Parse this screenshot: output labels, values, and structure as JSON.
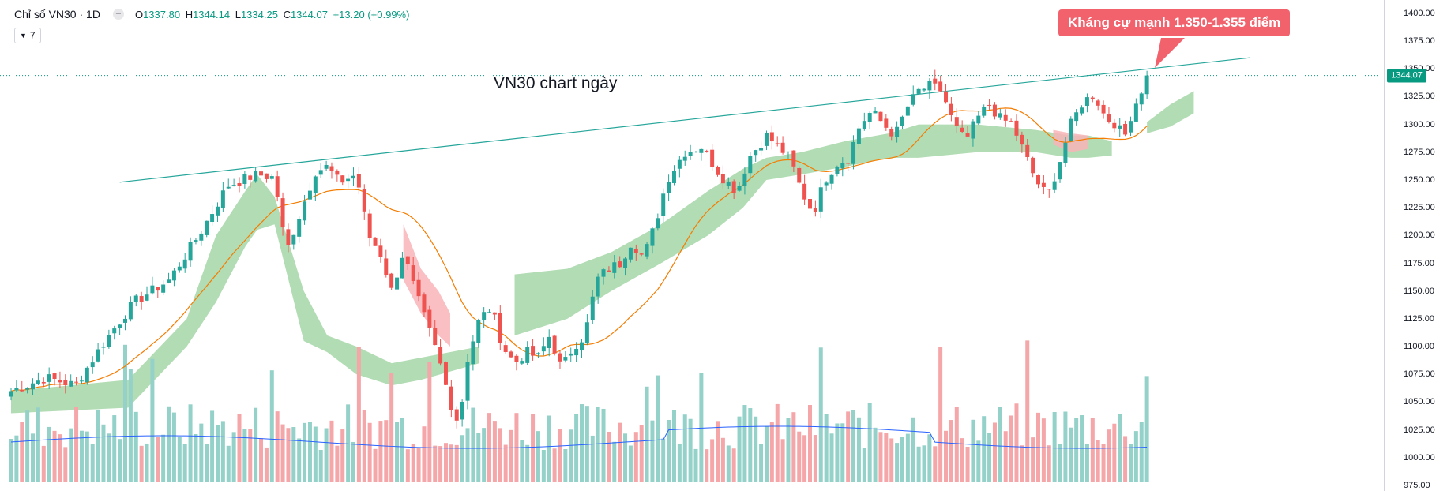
{
  "legend": {
    "symbol": "Chỉ số VN30 · 1D",
    "open_label": "O",
    "open": "1337.80",
    "high_label": "H",
    "high": "1344.14",
    "low_label": "L",
    "low": "1334.25",
    "close_label": "C",
    "close": "1344.07",
    "change": "+13.20 (+0.99%)",
    "indicators_count": "7",
    "indicators_chevron_icon": "chevron-down-icon",
    "menu_icon": "minus-icon"
  },
  "annotations": {
    "resistance_label": "Kháng cự mạnh 1.350-1.355 điểm",
    "chart_caption": "VN30 chart ngày"
  },
  "colors": {
    "up": "#26a69a",
    "down": "#ef5350",
    "vol_up": "#94d1c9",
    "vol_down": "#f4a6a9",
    "ma": "#f57c00",
    "vol_ma": "#2962ff",
    "cloud_bull": "#a5d6a7",
    "cloud_bear": "#f8b4b7",
    "trendline": "#26a69a",
    "callout": "#f2626d",
    "last_badge": "#089981"
  },
  "chart_data": {
    "type": "candlestick",
    "title": "Chỉ số VN30 · 1D",
    "price_axis": {
      "ticks": [
        "1400.00",
        "1375.00",
        "1350.00",
        "1325.00",
        "1300.00",
        "1275.00",
        "1250.00",
        "1225.00",
        "1200.00",
        "1175.00",
        "1150.00",
        "1125.00",
        "1100.00",
        "1075.00",
        "1050.00",
        "1025.00",
        "1000.00",
        "975.00"
      ],
      "range": [
        970,
        1412
      ]
    },
    "last_price": "1344.07",
    "bars": 210,
    "price_path": [
      [
        0,
        1060
      ],
      [
        12,
        1072
      ],
      [
        22,
        1065
      ],
      [
        32,
        1105
      ],
      [
        42,
        1140
      ],
      [
        54,
        1160
      ],
      [
        64,
        1200
      ],
      [
        74,
        1245
      ],
      [
        84,
        1255
      ],
      [
        90,
        1252
      ],
      [
        94,
        1185
      ],
      [
        98,
        1215
      ],
      [
        104,
        1258
      ],
      [
        108,
        1262
      ],
      [
        112,
        1248
      ],
      [
        118,
        1255
      ],
      [
        122,
        1200
      ],
      [
        126,
        1185
      ],
      [
        130,
        1150
      ],
      [
        134,
        1185
      ],
      [
        138,
        1150
      ],
      [
        142,
        1120
      ],
      [
        146,
        1090
      ],
      [
        150,
        1050
      ],
      [
        153,
        1030
      ],
      [
        156,
        1090
      ],
      [
        160,
        1125
      ],
      [
        164,
        1135
      ],
      [
        168,
        1100
      ],
      [
        172,
        1085
      ],
      [
        176,
        1095
      ],
      [
        180,
        1090
      ],
      [
        184,
        1110
      ],
      [
        188,
        1080
      ],
      [
        192,
        1100
      ],
      [
        196,
        1110
      ],
      [
        200,
        1160
      ],
      [
        204,
        1170
      ],
      [
        208,
        1175
      ],
      [
        212,
        1195
      ],
      [
        216,
        1180
      ],
      [
        220,
        1210
      ],
      [
        224,
        1250
      ],
      [
        230,
        1275
      ],
      [
        236,
        1280
      ],
      [
        242,
        1255
      ],
      [
        248,
        1240
      ],
      [
        252,
        1270
      ],
      [
        258,
        1290
      ],
      [
        262,
        1280
      ],
      [
        266,
        1270
      ],
      [
        270,
        1240
      ],
      [
        274,
        1220
      ],
      [
        278,
        1250
      ],
      [
        282,
        1265
      ],
      [
        286,
        1270
      ],
      [
        290,
        1300
      ],
      [
        294,
        1312
      ],
      [
        298,
        1300
      ],
      [
        302,
        1290
      ],
      [
        306,
        1315
      ],
      [
        310,
        1330
      ],
      [
        314,
        1335
      ],
      [
        318,
        1330
      ],
      [
        322,
        1300
      ],
      [
        326,
        1285
      ],
      [
        330,
        1305
      ],
      [
        334,
        1318
      ],
      [
        338,
        1305
      ],
      [
        342,
        1300
      ],
      [
        346,
        1275
      ],
      [
        350,
        1250
      ],
      [
        354,
        1235
      ],
      [
        358,
        1265
      ],
      [
        362,
        1300
      ],
      [
        366,
        1320
      ],
      [
        370,
        1327
      ],
      [
        374,
        1305
      ],
      [
        378,
        1300
      ],
      [
        380,
        1285
      ],
      [
        382,
        1305
      ],
      [
        384,
        1318
      ],
      [
        386,
        1330
      ],
      [
        388,
        1344
      ]
    ],
    "trendline": {
      "from": [
        0,
        1248
      ],
      "to": [
        395,
        1360
      ],
      "label": "Kháng cự mạnh 1.350-1.355 điểm"
    },
    "cloud_bull": [
      [
        0,
        1040,
        1060
      ],
      [
        40,
        1045,
        1070
      ],
      [
        60,
        1100,
        1125
      ],
      [
        70,
        1140,
        1200
      ],
      [
        80,
        1190,
        1240
      ],
      [
        84,
        1205,
        1255
      ],
      [
        90,
        1210,
        1235
      ],
      [
        100,
        1105,
        1150
      ],
      [
        108,
        1095,
        1110
      ],
      [
        118,
        1075,
        1100
      ],
      [
        130,
        1065,
        1085
      ],
      [
        140,
        1070,
        1090
      ],
      [
        160,
        1085,
        1100
      ]
    ],
    "cloud_bear": [
      [
        134,
        1160,
        1210
      ],
      [
        140,
        1130,
        1170
      ],
      [
        146,
        1110,
        1150
      ],
      [
        150,
        1100,
        1130
      ]
    ],
    "volume_ma": "blue line",
    "price_ma": "orange line"
  }
}
